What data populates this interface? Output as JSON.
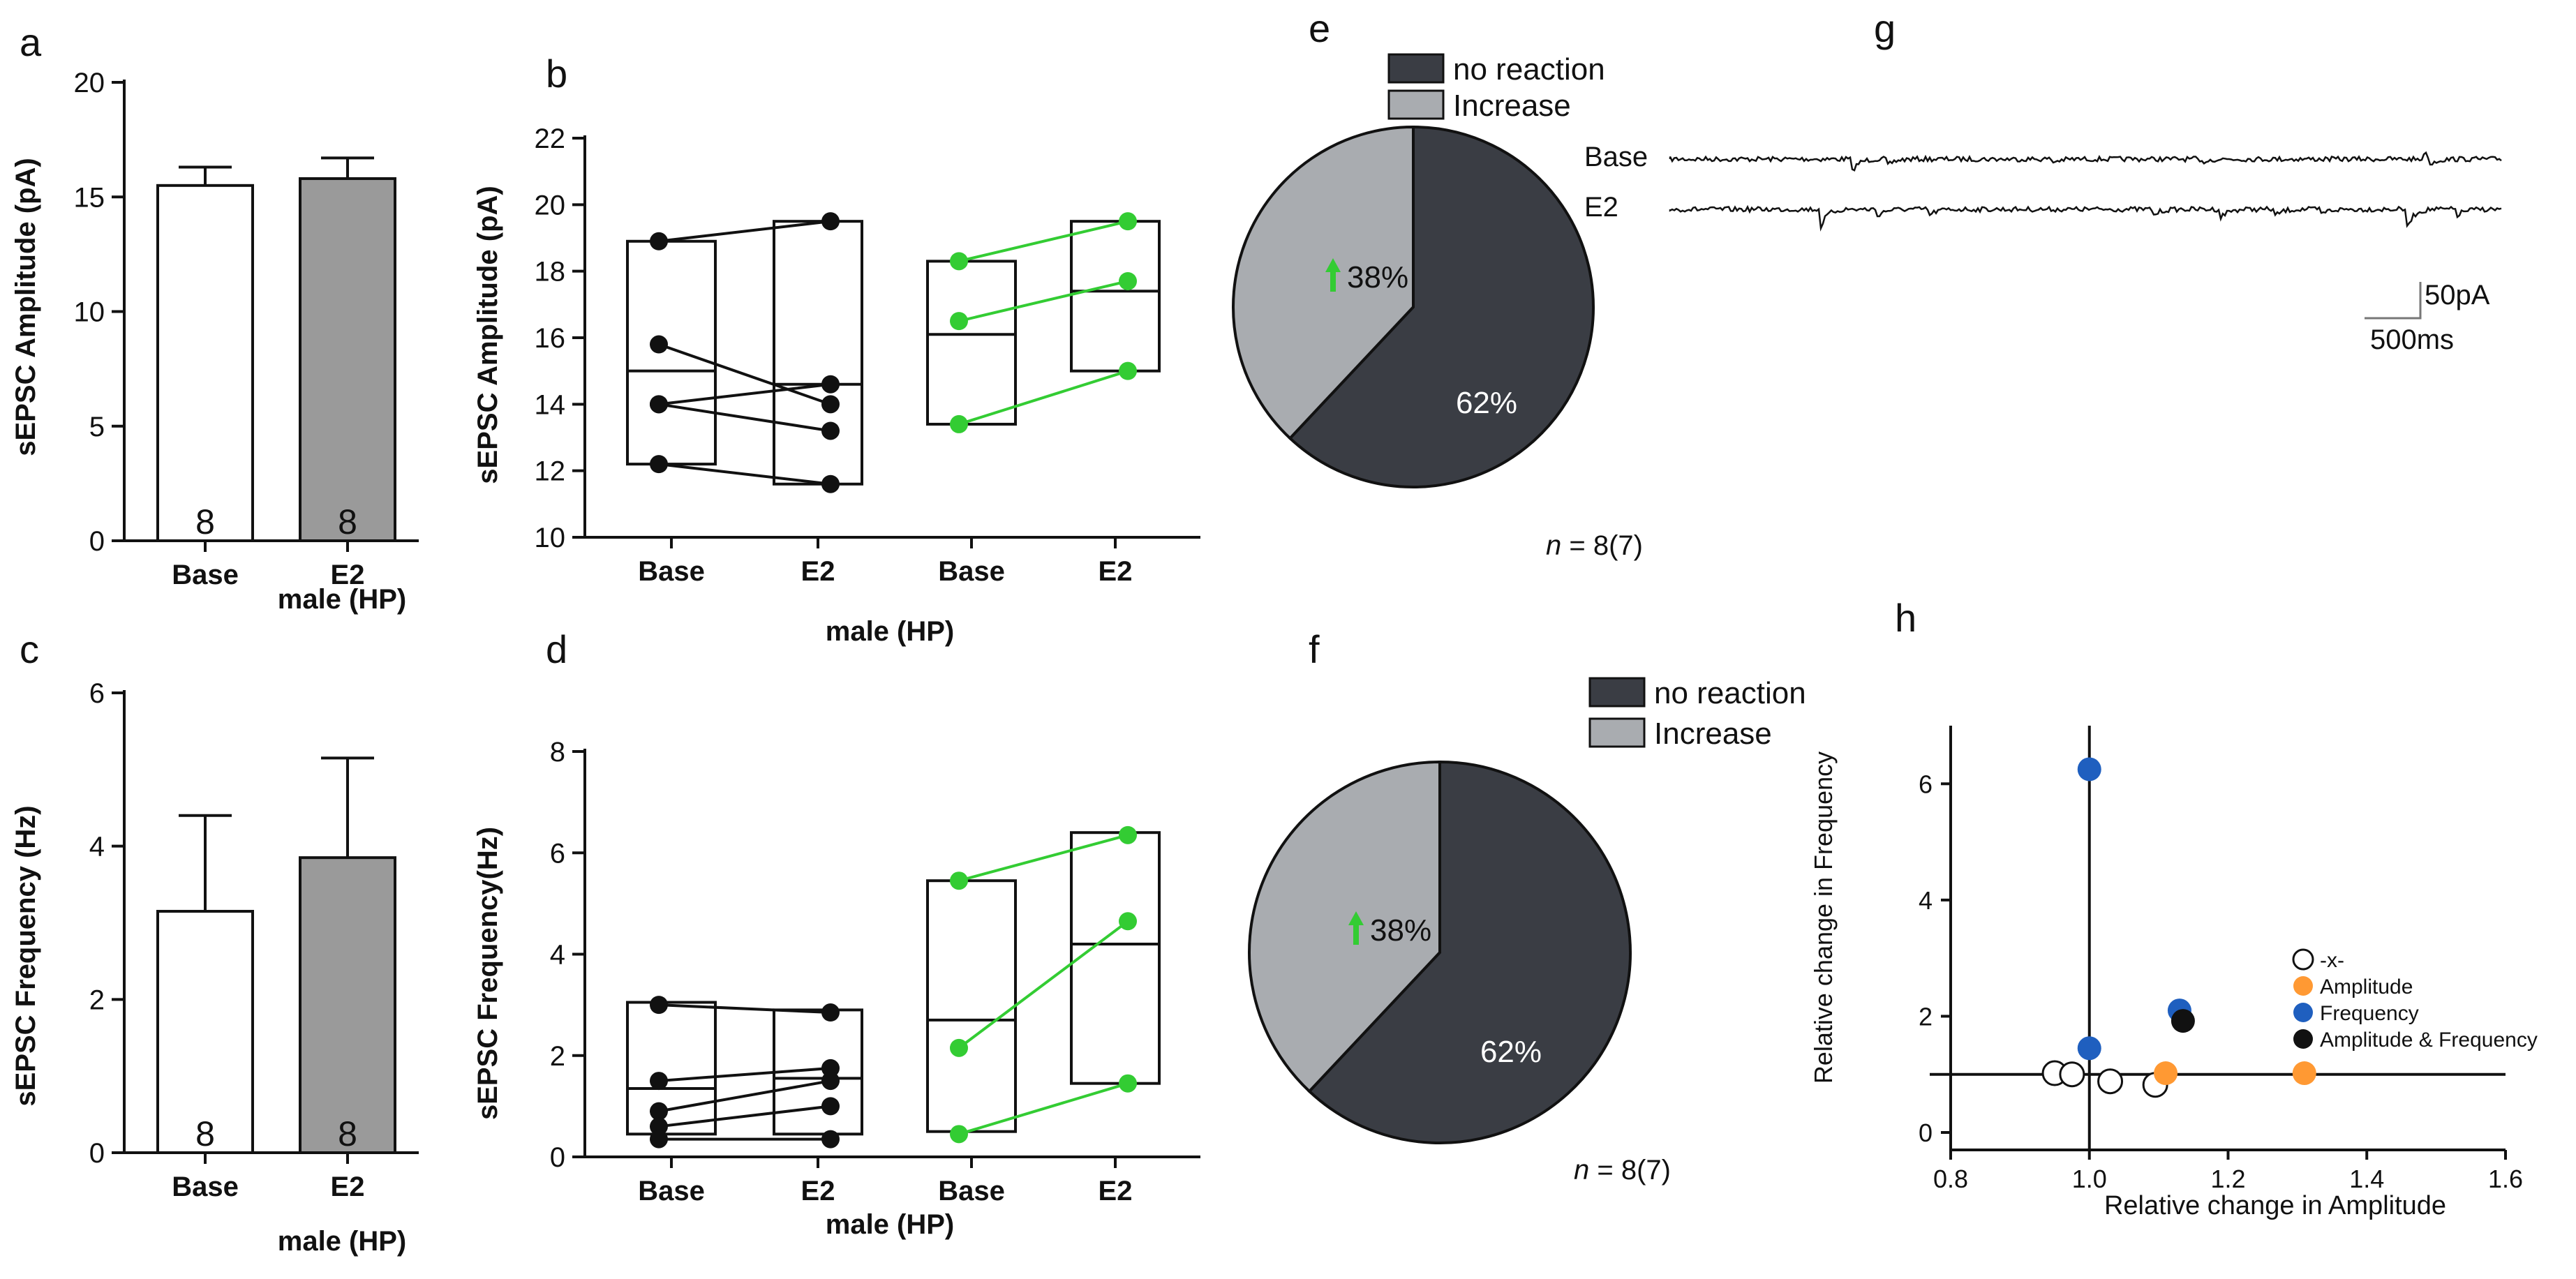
{
  "colors": {
    "black": "#111111",
    "gray_bar": "#9a9a9a",
    "green": "#33cc33",
    "dark_pie": "#3a3d44",
    "light_pie": "#a9acb0",
    "orange": "#ff9933",
    "blue": "#1f5fbf"
  },
  "chart_data": [
    {
      "panel": "a",
      "type": "bar",
      "categories": [
        "Base",
        "E2"
      ],
      "values": [
        15.5,
        15.8
      ],
      "errors": [
        0.8,
        0.9
      ],
      "n_labels": [
        "8",
        "8"
      ],
      "bar_colors": [
        "#ffffff",
        "#9a9a9a"
      ],
      "ylabel": "sEPSC Amplitude (pA)",
      "xlabel": "male (HP)",
      "ylim": [
        0,
        20
      ],
      "yticks": [
        0,
        5,
        10,
        15,
        20
      ]
    },
    {
      "panel": "b",
      "type": "box",
      "categories": [
        "Base",
        "E2",
        "Base",
        "E2"
      ],
      "groups": [
        {
          "color": "#111111",
          "base": [
            18.9,
            15.8,
            14.0,
            14.0,
            12.2
          ],
          "e2": [
            19.5,
            14.0,
            14.6,
            13.2,
            11.6
          ],
          "box_base": [
            12.2,
            15.0,
            18.9
          ],
          "box_e2": [
            11.6,
            14.6,
            19.5
          ]
        },
        {
          "color": "#33cc33",
          "base": [
            18.3,
            16.5,
            13.4
          ],
          "e2": [
            19.5,
            17.7,
            15.0
          ],
          "box_base": [
            13.4,
            16.1,
            18.3
          ],
          "box_e2": [
            15.0,
            17.4,
            19.5
          ]
        }
      ],
      "ylabel": "sEPSC Amplitude (pA)",
      "xlabel": "male (HP)",
      "ylim": [
        10,
        22
      ],
      "yticks": [
        10,
        12,
        14,
        16,
        18,
        20,
        22
      ]
    },
    {
      "panel": "c",
      "type": "bar",
      "categories": [
        "Base",
        "E2"
      ],
      "values": [
        3.15,
        3.85
      ],
      "errors": [
        1.25,
        1.3
      ],
      "n_labels": [
        "8",
        "8"
      ],
      "bar_colors": [
        "#ffffff",
        "#9a9a9a"
      ],
      "ylabel": "sEPSC Frequency (Hz)",
      "xlabel": "male (HP)",
      "ylim": [
        0,
        6
      ],
      "yticks": [
        0,
        2,
        4,
        6
      ]
    },
    {
      "panel": "d",
      "type": "box",
      "categories": [
        "Base",
        "E2",
        "Base",
        "E2"
      ],
      "groups": [
        {
          "color": "#111111",
          "base": [
            3.0,
            1.5,
            0.9,
            0.6,
            0.35
          ],
          "e2": [
            2.85,
            1.75,
            1.5,
            1.0,
            0.35
          ],
          "box_base": [
            0.45,
            1.35,
            3.05
          ],
          "box_e2": [
            0.45,
            1.55,
            2.9
          ]
        },
        {
          "color": "#33cc33",
          "base": [
            5.45,
            2.15,
            0.45
          ],
          "e2": [
            6.35,
            4.65,
            1.45
          ],
          "box_base": [
            0.5,
            2.7,
            5.45
          ],
          "box_e2": [
            1.45,
            4.2,
            6.4
          ]
        }
      ],
      "ylabel": "sEPSC Frequency(Hz)",
      "xlabel": "male (HP)",
      "ylim": [
        0,
        8
      ],
      "yticks": [
        0,
        2,
        4,
        6,
        8
      ]
    },
    {
      "panel": "e",
      "type": "pie",
      "slices": [
        {
          "label": "no reaction",
          "value": 62,
          "text": "62%",
          "color": "#3a3d44"
        },
        {
          "label": "Increase",
          "value": 38,
          "text": "38%",
          "color": "#a9acb0"
        }
      ],
      "n_prefix": "n",
      "n_text": " = 8(7)"
    },
    {
      "panel": "f",
      "type": "pie",
      "slices": [
        {
          "label": "no reaction",
          "value": 62,
          "text": "62%",
          "color": "#3a3d44"
        },
        {
          "label": "Increase",
          "value": 38,
          "text": "38%",
          "color": "#a9acb0"
        }
      ],
      "n_prefix": "n",
      "n_text": " = 8(7)"
    },
    {
      "panel": "g",
      "type": "trace",
      "traces": [
        "Base",
        "E2"
      ],
      "scale_y": "50pA",
      "scale_x": "500ms"
    },
    {
      "panel": "h",
      "type": "scatter",
      "xlabel": "Relative change in Amplitude",
      "ylabel": "Relative change in Frequency",
      "xlim": [
        0.8,
        1.6
      ],
      "ylim": [
        -0.3,
        7.0
      ],
      "xticks": [
        "0.8",
        "1.0",
        "1.2",
        "1.4",
        "1.6"
      ],
      "yticks": [
        "0",
        "2",
        "4",
        "6"
      ],
      "legend": [
        "-x-",
        "Amplitude",
        "Frequency",
        "Amplitude & Frequency"
      ],
      "series": [
        {
          "name": "-x-",
          "color": "#ffffff",
          "points": [
            [
              0.95,
              1.02
            ],
            [
              0.975,
              1.0
            ],
            [
              1.03,
              0.88
            ],
            [
              1.095,
              0.82
            ]
          ]
        },
        {
          "name": "Amplitude",
          "color": "#ff9933",
          "points": [
            [
              1.11,
              1.02
            ],
            [
              1.31,
              1.02
            ]
          ]
        },
        {
          "name": "Frequency",
          "color": "#1f5fbf",
          "points": [
            [
              1.0,
              6.25
            ],
            [
              1.0,
              1.45
            ],
            [
              1.13,
              2.1
            ]
          ]
        },
        {
          "name": "Amplitude & Frequency",
          "color": "#111111",
          "points": [
            [
              1.135,
              1.92
            ]
          ]
        }
      ]
    }
  ],
  "panel_letters": [
    "a",
    "b",
    "c",
    "d",
    "e",
    "f",
    "g",
    "h"
  ]
}
